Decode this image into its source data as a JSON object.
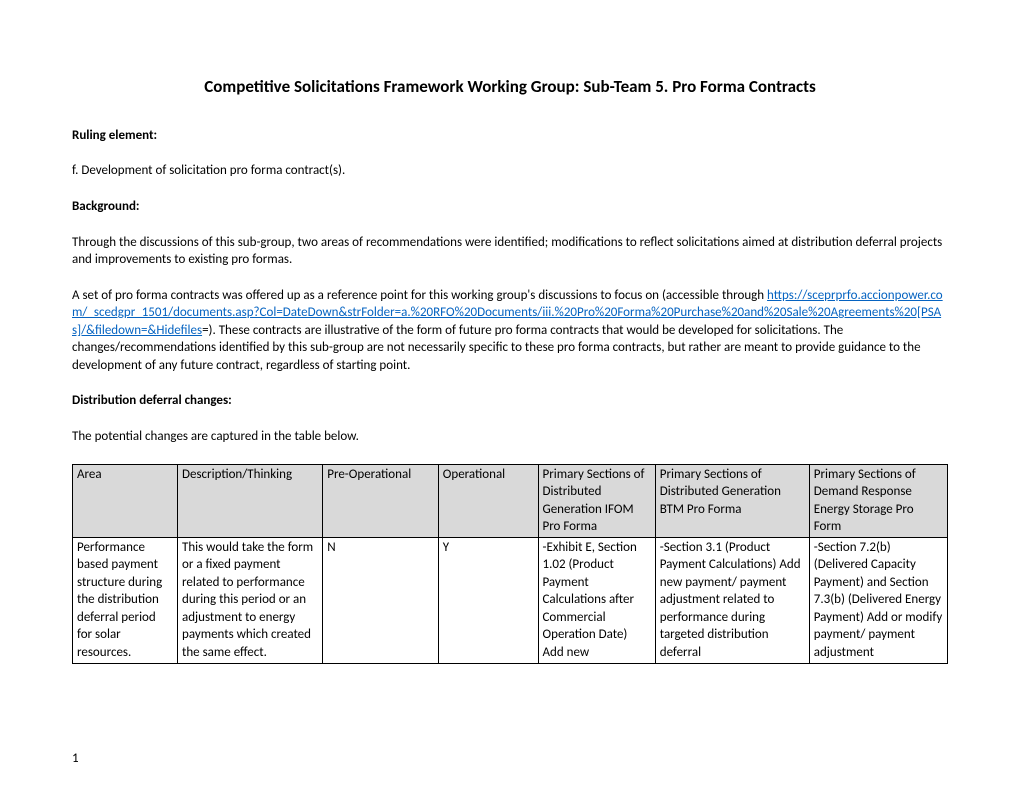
{
  "title": "Competitive Solicitations Framework Working Group: Sub-Team 5. Pro Forma Contracts",
  "ruling_label": "Ruling element:",
  "ruling_text": "f. Development of solicitation pro forma contract(s).",
  "background_label": "Background:",
  "background_p1": "Through the discussions of this sub-group, two areas of recommendations were identified; modifications to reflect solicitations aimed at distribution deferral projects and improvements to existing pro formas.",
  "background_p2_pre": "A set of pro forma contracts was offered up as a reference point for this working group's discussions to focus on (accessible through ",
  "background_link": "https://sceprprfo.accionpower.com/_scedgpr_1501/documents.asp?Col=DateDown&strFolder=a.%20RFO%20Documents/iii.%20Pro%20Forma%20Purchase%20and%20Sale%20Agreements%20[PSAs]/&filedown=&Hidefiles",
  "background_p2_post": "=). These contracts are illustrative of the form of future pro forma contracts that would be developed for solicitations. The changes/recommendations identified by this sub-group are not necessarily specific to these pro forma contracts, but rather are meant to provide guidance to the development of any future contract, regardless of starting point.",
  "dist_label": "Distribution deferral changes:",
  "dist_text": "The potential changes are captured in the table below.",
  "table": {
    "header_bg": "#d9d9d9",
    "border_color": "#000000",
    "headers": [
      "Area",
      "Description/Thinking",
      "Pre-Operational",
      "Operational",
      "Primary Sections of Distributed Generation IFOM Pro Forma",
      "Primary Sections of Distributed Generation BTM Pro Forma",
      "Primary Sections of Demand Response Energy Storage Pro Form"
    ],
    "row1": [
      "Performance based payment structure during the distribution deferral period for solar resources.",
      "This would take the form or a fixed payment related to performance during this period or an adjustment to energy payments which created the same effect.",
      "N",
      "Y",
      "-Exhibit E, Section 1.02 (Product Payment Calculations after Commercial Operation Date) Add new",
      "-Section 3.1 (Product Payment Calculations) Add new payment/ payment adjustment related to performance during targeted distribution deferral",
      "-Section 7.2(b) (Delivered Capacity Payment) and Section 7.3(b) (Delivered Energy Payment) Add or modify  payment/ payment adjustment"
    ]
  },
  "page_number": "1"
}
